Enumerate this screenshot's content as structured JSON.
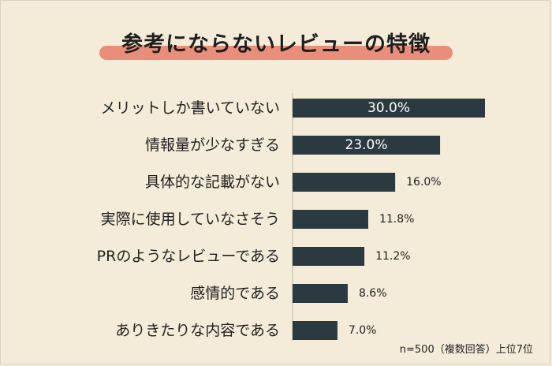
{
  "title": "参考にならないレビューの特徴",
  "note": "n=500（複数回答）上位7位",
  "colors": {
    "bar": "#2b3a40",
    "highlight": "#e98e7a",
    "background": "#f4ecd9"
  },
  "chart_data": {
    "type": "bar",
    "orientation": "horizontal",
    "title": "参考にならないレビューの特徴",
    "categories": [
      "メリットしか書いていない",
      "情報量が少なすぎる",
      "具体的な記載がない",
      "実際に使用していなさそう",
      "PRのようなレビューである",
      "感情的である",
      "ありきたりな内容である"
    ],
    "values": [
      30.0,
      23.0,
      16.0,
      11.8,
      11.2,
      8.6,
      7.0
    ],
    "value_labels": [
      "30.0%",
      "23.0%",
      "16.0%",
      "11.8%",
      "11.2%",
      "8.6%",
      "7.0%"
    ],
    "xlim": [
      0,
      30
    ],
    "grid": false,
    "legend": "none"
  }
}
